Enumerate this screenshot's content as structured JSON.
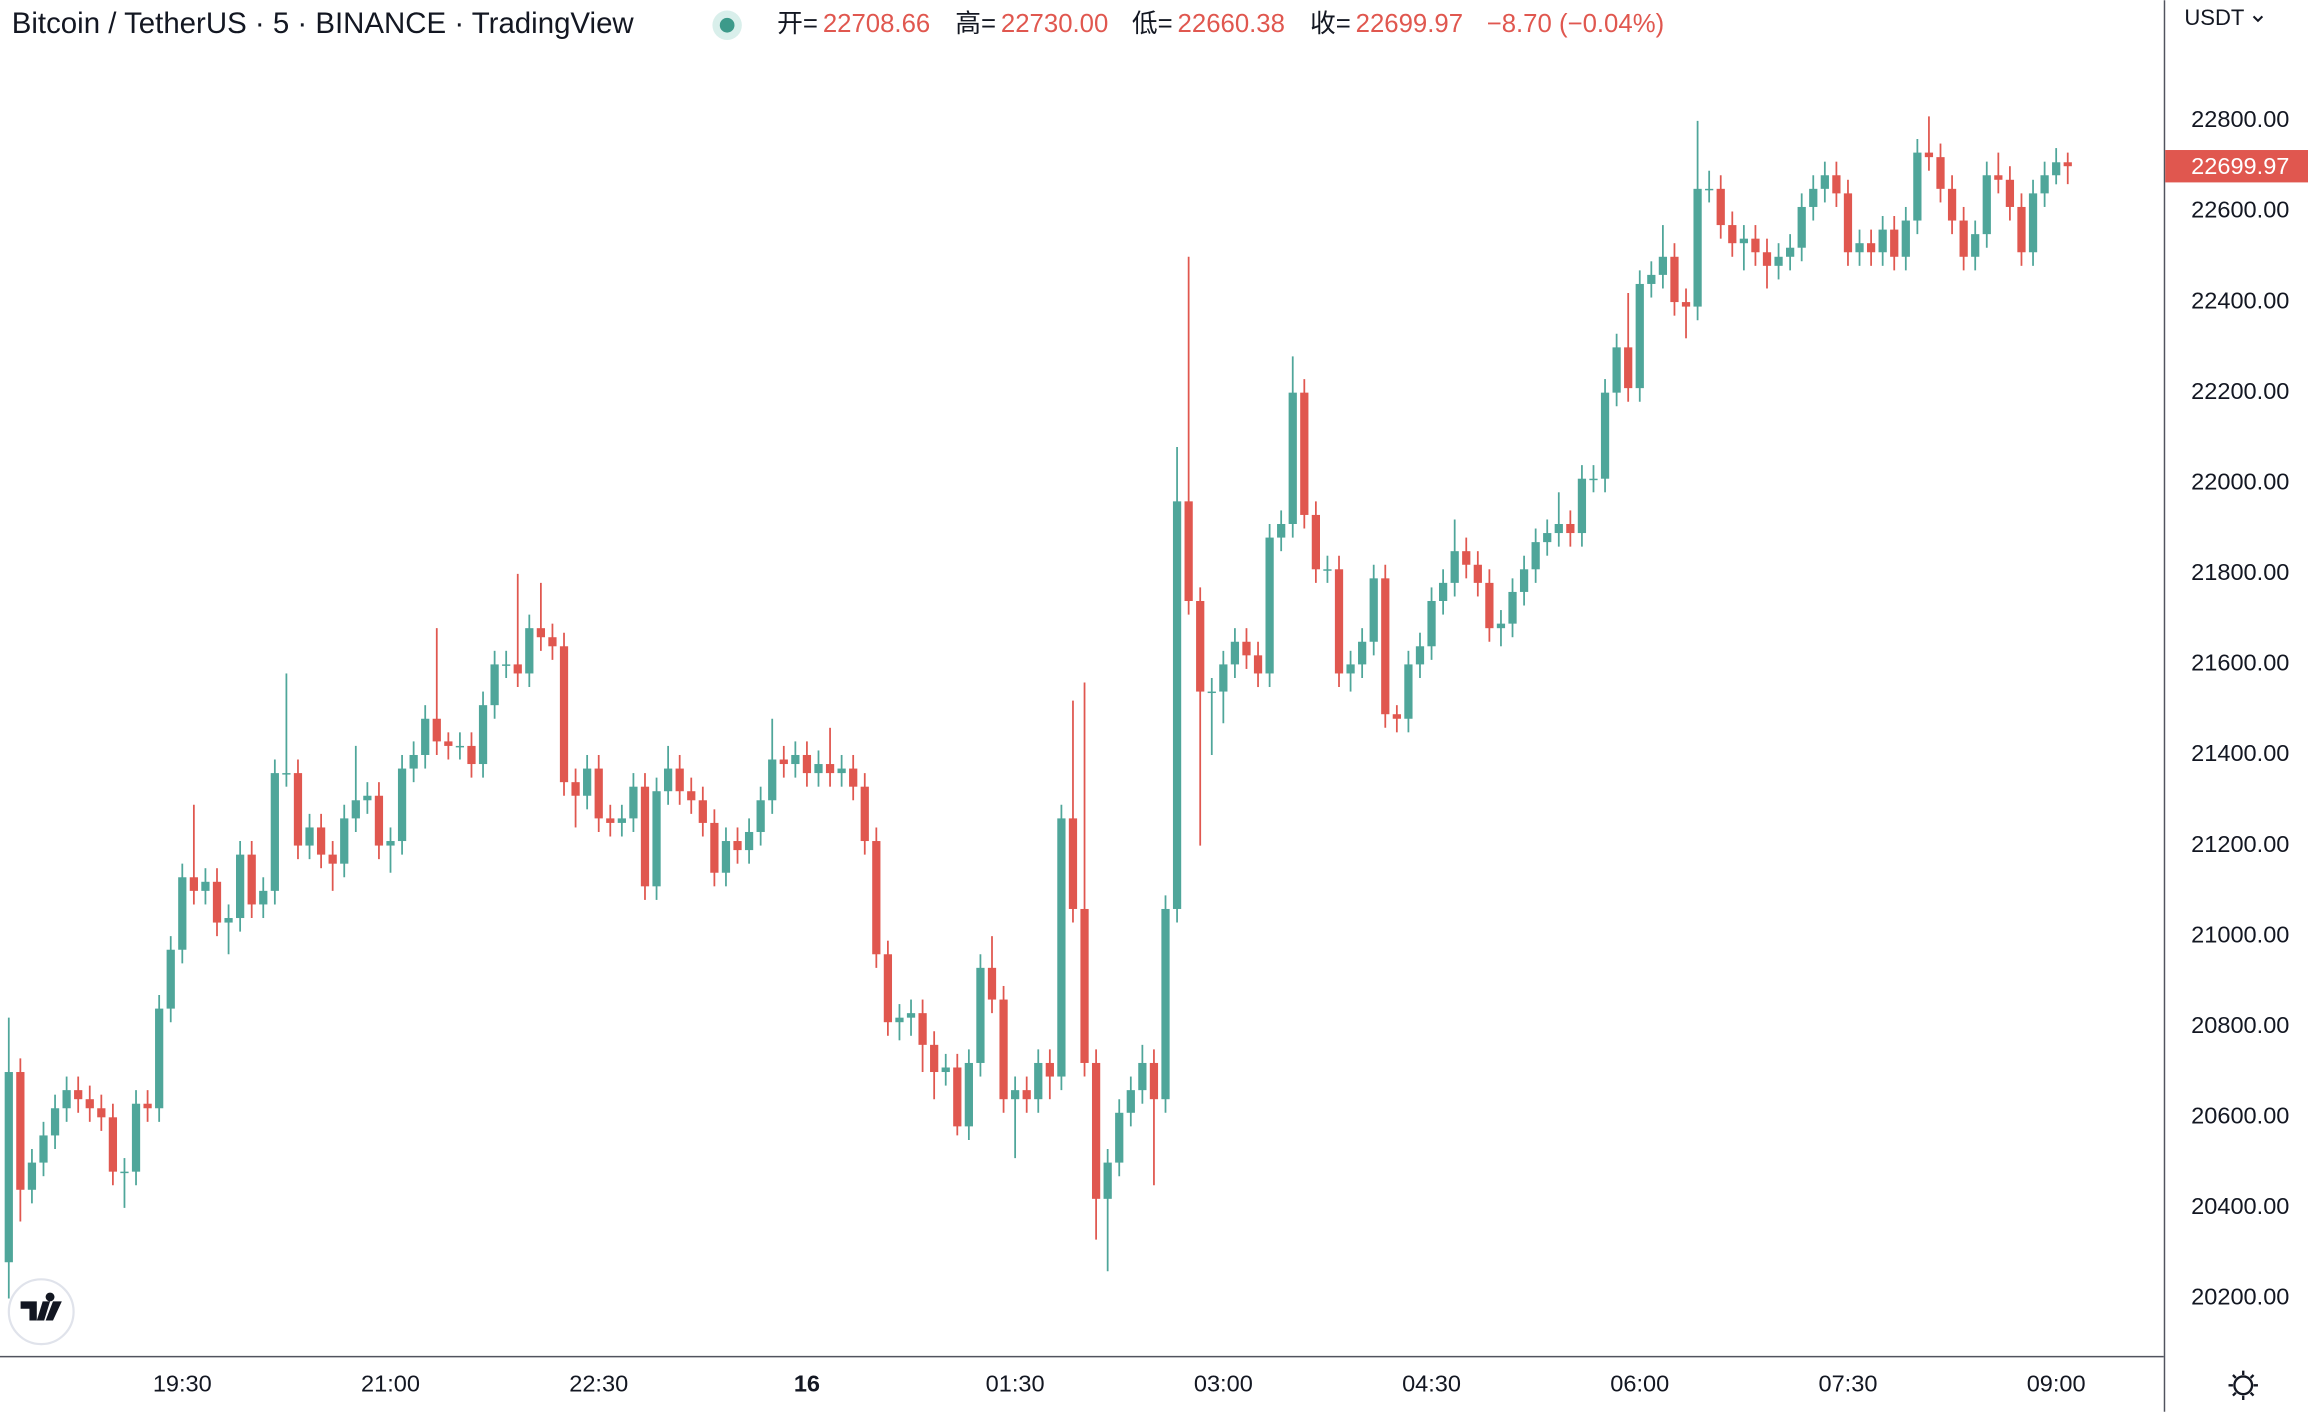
{
  "chart_data": {
    "type": "candlestick",
    "title": "Bitcoin / TetherUS · 5 · BINANCE · TradingView",
    "legend": [
      {
        "label": "开=",
        "value": "22708.66"
      },
      {
        "label": "高=",
        "value": "22730.00"
      },
      {
        "label": "低=",
        "value": "22660.38"
      },
      {
        "label": "收=",
        "value": "22699.97"
      }
    ],
    "change": "−8.70 (−0.04%)",
    "currency": "USDT",
    "up_color": "#4fa69a",
    "down_color": "#e0574f",
    "grid": false,
    "xlim": [
      -0.76,
      186.3
    ],
    "ylim": [
      20073.3,
      23066.5
    ],
    "xticks": [
      {
        "value": 15,
        "label": "19:30"
      },
      {
        "value": 33,
        "label": "21:00"
      },
      {
        "value": 51,
        "label": "22:30"
      },
      {
        "value": 69,
        "label": "16"
      },
      {
        "value": 87,
        "label": "01:30"
      },
      {
        "value": 105,
        "label": "03:00"
      },
      {
        "value": 123,
        "label": "04:30"
      },
      {
        "value": 141,
        "label": "06:00"
      },
      {
        "value": 159,
        "label": "07:30"
      },
      {
        "value": 177,
        "label": "09:00"
      }
    ],
    "yticks": [
      {
        "value": 20200,
        "label": "20200.00"
      },
      {
        "value": 20400,
        "label": "20400.00"
      },
      {
        "value": 20600,
        "label": "20600.00"
      },
      {
        "value": 20800,
        "label": "20800.00"
      },
      {
        "value": 21000,
        "label": "21000.00"
      },
      {
        "value": 21200,
        "label": "21200.00"
      },
      {
        "value": 21400,
        "label": "21400.00"
      },
      {
        "value": 21600,
        "label": "21600.00"
      },
      {
        "value": 21800,
        "label": "21800.00"
      },
      {
        "value": 22000,
        "label": "22000.00"
      },
      {
        "value": 22200,
        "label": "22200.00"
      },
      {
        "value": 22400,
        "label": "22400.00"
      },
      {
        "value": 22600,
        "label": "22600.00"
      },
      {
        "value": 22800,
        "label": "22800.00"
      }
    ],
    "open": [
      20280,
      20700,
      20440,
      20500,
      20560,
      20620,
      20660,
      20640,
      20620,
      20600,
      20480,
      20480,
      20630,
      20620,
      20840,
      20970,
      21130,
      21100,
      21120,
      21030,
      21040,
      21180,
      21070,
      21100,
      21360,
      21360,
      21200,
      21240,
      21180,
      21160,
      21260,
      21300,
      21310,
      21200,
      21210,
      21370,
      21400,
      21480,
      21430,
      21420,
      21420,
      21380,
      21510,
      21600,
      21600,
      21580,
      21680,
      21660,
      21640,
      21340,
      21310,
      21370,
      21260,
      21250,
      21260,
      21330,
      21110,
      21320,
      21370,
      21320,
      21300,
      21250,
      21140,
      21210,
      21190,
      21230,
      21300,
      21390,
      21380,
      21400,
      21360,
      21380,
      21360,
      21370,
      21330,
      21210,
      20960,
      20810,
      20820,
      20830,
      20760,
      20700,
      20710,
      20580,
      20720,
      20930,
      20860,
      20640,
      20660,
      20640,
      20720,
      20690,
      21260,
      21060,
      20720,
      20420,
      20500,
      20610,
      20660,
      20720,
      20640,
      21060,
      21960,
      21740,
      21540,
      21540,
      21600,
      21650,
      21620,
      21580,
      21880,
      21910,
      22200,
      21930,
      21810,
      21810,
      21580,
      21600,
      21650,
      21790,
      21490,
      21480,
      21600,
      21640,
      21740,
      21780,
      21850,
      21820,
      21780,
      21680,
      21690,
      21760,
      21810,
      21870,
      21890,
      21910,
      21890,
      22010,
      22010,
      22200,
      22300,
      22210,
      22440,
      22460,
      22500,
      22400,
      22390,
      22650,
      22650,
      22570,
      22530,
      22540,
      22510,
      22480,
      22500,
      22520,
      22610,
      22650,
      22680,
      22640,
      22510,
      22530,
      22510,
      22560,
      22500,
      22580,
      22730,
      22720,
      22650,
      22580,
      22500,
      22550,
      22680,
      22670,
      22610,
      22510,
      22640,
      22680,
      22708.66
    ],
    "high": [
      20820,
      20730,
      20530,
      20590,
      20650,
      20690,
      20690,
      20670,
      20650,
      20630,
      20510,
      20660,
      20660,
      20870,
      21000,
      21160,
      21290,
      21150,
      21150,
      21070,
      21210,
      21210,
      21130,
      21390,
      21580,
      21390,
      21270,
      21270,
      21210,
      21290,
      21420,
      21340,
      21340,
      21240,
      21400,
      21430,
      21510,
      21680,
      21450,
      21450,
      21450,
      21540,
      21630,
      21630,
      21800,
      21710,
      21780,
      21690,
      21670,
      21370,
      21400,
      21400,
      21290,
      21290,
      21360,
      21360,
      21350,
      21420,
      21400,
      21350,
      21330,
      21280,
      21240,
      21240,
      21260,
      21330,
      21480,
      21420,
      21430,
      21430,
      21410,
      21460,
      21400,
      21400,
      21360,
      21240,
      20990,
      20850,
      20860,
      20860,
      20790,
      20740,
      20740,
      20750,
      20960,
      21000,
      20890,
      20690,
      20690,
      20750,
      20750,
      21290,
      21520,
      21560,
      20750,
      20530,
      20640,
      20690,
      20760,
      20750,
      21090,
      22080,
      22500,
      21770,
      21570,
      21630,
      21680,
      21680,
      21650,
      21910,
      21940,
      22280,
      22230,
      21960,
      21840,
      21840,
      21630,
      21680,
      21820,
      21820,
      21510,
      21630,
      21670,
      21770,
      21810,
      21920,
      21880,
      21850,
      21810,
      21720,
      21790,
      21840,
      21900,
      21920,
      21980,
      21940,
      22040,
      22040,
      22230,
      22330,
      22420,
      22470,
      22490,
      22570,
      22530,
      22430,
      22800,
      22690,
      22680,
      22600,
      22570,
      22570,
      22540,
      22530,
      22550,
      22640,
      22680,
      22710,
      22710,
      22670,
      22560,
      22560,
      22590,
      22590,
      22610,
      22760,
      22810,
      22750,
      22680,
      22610,
      22580,
      22710,
      22730,
      22700,
      22640,
      22670,
      22710,
      22740,
      22730
    ],
    "low": [
      20200,
      20370,
      20410,
      20470,
      20530,
      20590,
      20610,
      20590,
      20570,
      20450,
      20400,
      20450,
      20590,
      20590,
      20810,
      20940,
      21070,
      21070,
      21000,
      20960,
      21010,
      21040,
      21040,
      21070,
      21330,
      21170,
      21170,
      21150,
      21100,
      21130,
      21230,
      21270,
      21170,
      21140,
      21180,
      21340,
      21370,
      21400,
      21390,
      21390,
      21350,
      21350,
      21480,
      21570,
      21550,
      21550,
      21630,
      21610,
      21310,
      21240,
      21280,
      21230,
      21220,
      21220,
      21230,
      21080,
      21080,
      21290,
      21290,
      21270,
      21220,
      21110,
      21110,
      21160,
      21160,
      21200,
      21270,
      21350,
      21350,
      21330,
      21330,
      21330,
      21330,
      21300,
      21180,
      20930,
      20780,
      20770,
      20780,
      20700,
      20640,
      20670,
      20560,
      20550,
      20690,
      20830,
      20610,
      20510,
      20610,
      20610,
      20640,
      20660,
      21030,
      20690,
      20330,
      20260,
      20470,
      20580,
      20630,
      20450,
      20610,
      21030,
      21710,
      21200,
      21400,
      21470,
      21570,
      21590,
      21550,
      21550,
      21850,
      21880,
      21900,
      21780,
      21780,
      21550,
      21540,
      21570,
      21620,
      21460,
      21450,
      21450,
      21570,
      21610,
      21710,
      21750,
      21790,
      21750,
      21650,
      21640,
      21660,
      21730,
      21780,
      21840,
      21860,
      21860,
      21860,
      21980,
      21980,
      22170,
      22180,
      22180,
      22410,
      22430,
      22370,
      22320,
      22360,
      22620,
      22540,
      22500,
      22470,
      22480,
      22430,
      22450,
      22470,
      22490,
      22580,
      22620,
      22610,
      22480,
      22480,
      22480,
      22480,
      22470,
      22470,
      22550,
      22690,
      22620,
      22550,
      22470,
      22470,
      22520,
      22640,
      22580,
      22480,
      22480,
      22610,
      22660,
      22660.38
    ],
    "close": [
      20700,
      20440,
      20500,
      20560,
      20620,
      20660,
      20640,
      20620,
      20600,
      20480,
      20480,
      20630,
      20620,
      20840,
      20970,
      21130,
      21100,
      21120,
      21030,
      21040,
      21180,
      21070,
      21100,
      21360,
      21360,
      21200,
      21240,
      21180,
      21160,
      21260,
      21300,
      21310,
      21200,
      21210,
      21370,
      21400,
      21480,
      21430,
      21420,
      21420,
      21380,
      21510,
      21600,
      21600,
      21580,
      21680,
      21660,
      21640,
      21340,
      21310,
      21370,
      21260,
      21250,
      21260,
      21330,
      21110,
      21320,
      21370,
      21320,
      21300,
      21250,
      21140,
      21210,
      21190,
      21230,
      21300,
      21390,
      21380,
      21400,
      21360,
      21380,
      21360,
      21370,
      21330,
      21210,
      20960,
      20810,
      20820,
      20830,
      20760,
      20700,
      20710,
      20580,
      20720,
      20930,
      20860,
      20640,
      20660,
      20640,
      20720,
      20690,
      21260,
      21060,
      20720,
      20420,
      20500,
      20610,
      20660,
      20720,
      20640,
      21060,
      21960,
      21740,
      21540,
      21540,
      21600,
      21650,
      21620,
      21580,
      21880,
      21910,
      22200,
      21930,
      21810,
      21810,
      21580,
      21600,
      21650,
      21790,
      21490,
      21480,
      21600,
      21640,
      21740,
      21780,
      21850,
      21820,
      21780,
      21680,
      21690,
      21760,
      21810,
      21870,
      21890,
      21910,
      21890,
      22010,
      22010,
      22200,
      22300,
      22210,
      22440,
      22460,
      22500,
      22400,
      22390,
      22650,
      22650,
      22570,
      22530,
      22540,
      22510,
      22480,
      22500,
      22520,
      22610,
      22650,
      22680,
      22640,
      22510,
      22530,
      22510,
      22560,
      22500,
      22580,
      22730,
      22720,
      22650,
      22580,
      22500,
      22550,
      22680,
      22670,
      22610,
      22510,
      22640,
      22680,
      22708.66,
      22699.97
    ]
  }
}
